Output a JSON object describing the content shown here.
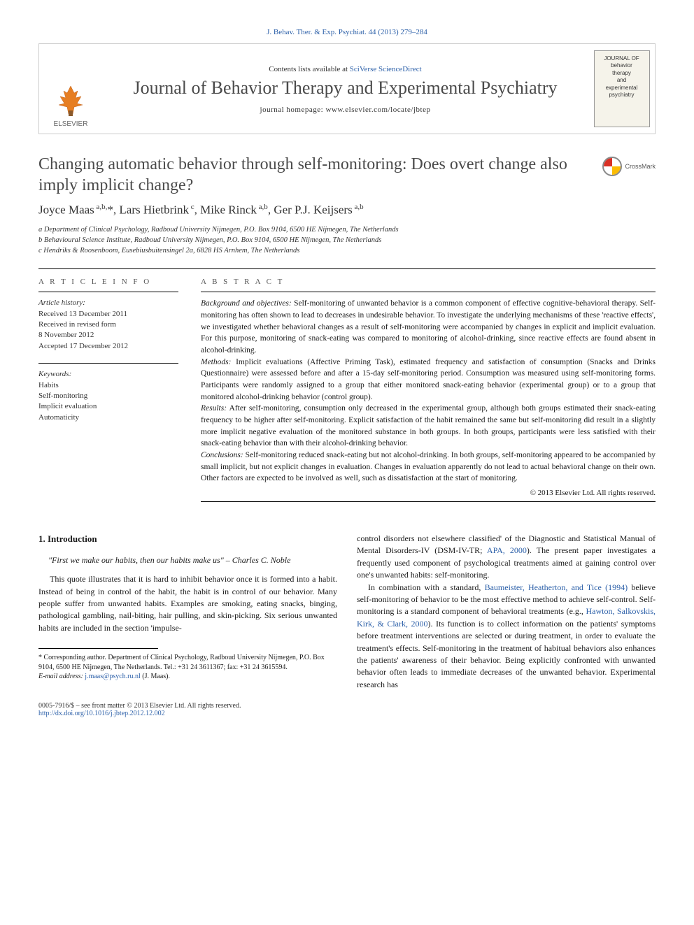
{
  "citation": "J. Behav. Ther. & Exp. Psychiat. 44 (2013) 279–284",
  "banner": {
    "publisher": "ELSEVIER",
    "contents_prefix": "Contents lists available at ",
    "contents_link": "SciVerse ScienceDirect",
    "journal_name": "Journal of Behavior Therapy and Experimental Psychiatry",
    "homepage_prefix": "journal homepage: ",
    "homepage_url": "www.elsevier.com/locate/jbtep",
    "cover_words": [
      "JOURNAL OF",
      "behavior",
      "therapy",
      "and",
      "experimental",
      "psychiatry"
    ]
  },
  "crossmark_label": "CrossMark",
  "title": "Changing automatic behavior through self-monitoring: Does overt change also imply implicit change?",
  "authors_html": "Joyce Maas<sup> a,b,</sup>*, Lars Hietbrink<sup> c</sup>, Mike Rinck<sup> a,b</sup>, Ger P.J. Keijsers<sup> a,b</sup>",
  "affiliations": [
    "a Department of Clinical Psychology, Radboud University Nijmegen, P.O. Box 9104, 6500 HE Nijmegen, The Netherlands",
    "b Behavioural Science Institute, Radboud University Nijmegen, P.O. Box 9104, 6500 HE Nijmegen, The Netherlands",
    "c Hendriks & Roosenboom, Eusebiusbuitensingel 2a, 6828 HS Arnhem, The Netherlands"
  ],
  "info_heading": "A R T I C L E   I N F O",
  "abstract_heading": "A B S T R A C T",
  "history": {
    "label": "Article history:",
    "lines": [
      "Received 13 December 2011",
      "Received in revised form",
      "8 November 2012",
      "Accepted 17 December 2012"
    ]
  },
  "keywords": {
    "label": "Keywords:",
    "lines": [
      "Habits",
      "Self-monitoring",
      "Implicit evaluation",
      "Automaticity"
    ]
  },
  "abstract": {
    "background_label": "Background and objectives:",
    "background": " Self-monitoring of unwanted behavior is a common component of effective cognitive-behavioral therapy. Self-monitoring has often shown to lead to decreases in undesirable behavior. To investigate the underlying mechanisms of these 'reactive effects', we investigated whether behavioral changes as a result of self-monitoring were accompanied by changes in explicit and implicit evaluation. For this purpose, monitoring of snack-eating was compared to monitoring of alcohol-drinking, since reactive effects are found absent in alcohol-drinking.",
    "methods_label": "Methods:",
    "methods": " Implicit evaluations (Affective Priming Task), estimated frequency and satisfaction of consumption (Snacks and Drinks Questionnaire) were assessed before and after a 15-day self-monitoring period. Consumption was measured using self-monitoring forms. Participants were randomly assigned to a group that either monitored snack-eating behavior (experimental group) or to a group that monitored alcohol-drinking behavior (control group).",
    "results_label": "Results:",
    "results": " After self-monitoring, consumption only decreased in the experimental group, although both groups estimated their snack-eating frequency to be higher after self-monitoring. Explicit satisfaction of the habit remained the same but self-monitoring did result in a slightly more implicit negative evaluation of the monitored substance in both groups. In both groups, participants were less satisfied with their snack-eating behavior than with their alcohol-drinking behavior.",
    "conclusions_label": "Conclusions:",
    "conclusions": " Self-monitoring reduced snack-eating but not alcohol-drinking. In both groups, self-monitoring appeared to be accompanied by small implicit, but not explicit changes in evaluation. Changes in evaluation apparently do not lead to actual behavioral change on their own. Other factors are expected to be involved as well, such as dissatisfaction at the start of monitoring.",
    "copyright": "© 2013 Elsevier Ltd. All rights reserved."
  },
  "body": {
    "section_number": "1.",
    "section_title": "Introduction",
    "quote": "\"First we make our habits, then our habits make us\" – Charles C. Noble",
    "col1_p1": "This quote illustrates that it is hard to inhibit behavior once it is formed into a habit. Instead of being in control of the habit, the habit is in control of our behavior. Many people suffer from unwanted habits. Examples are smoking, eating snacks, binging, pathological gambling, nail-biting, hair pulling, and skin-picking. Six serious unwanted habits are included in the section 'impulse-",
    "col2_p1_a": "control disorders not elsewhere classified' of the Diagnostic and Statistical Manual of Mental Disorders-IV (DSM-IV-TR; ",
    "col2_p1_link1": "APA, 2000",
    "col2_p1_b": "). The present paper investigates a frequently used component of psychological treatments aimed at gaining control over one's unwanted habits: self-monitoring.",
    "col2_p2_a": "In combination with a standard, ",
    "col2_p2_link1": "Baumeister, Heatherton, and Tice (1994)",
    "col2_p2_b": " believe self-monitoring of behavior to be the most effective method to achieve self-control. Self-monitoring is a standard component of behavioral treatments (e.g., ",
    "col2_p2_link2": "Hawton, Salkovskis, Kirk, & Clark, 2000",
    "col2_p2_c": "). Its function is to collect information on the patients' symptoms before treatment interventions are selected or during treatment, in order to evaluate the treatment's effects. Self-monitoring in the treatment of habitual behaviors also enhances the patients' awareness of their behavior. Being explicitly confronted with unwanted behavior often leads to immediate decreases of the unwanted behavior. Experimental research has"
  },
  "footnote": {
    "corr": "* Corresponding author. Department of Clinical Psychology, Radboud University Nijmegen, P.O. Box 9104, 6500 HE Nijmegen, The Netherlands. Tel.: +31 24 3611367; fax: +31 24 3615594.",
    "email_label": "E-mail address:",
    "email": "j.maas@psych.ru.nl",
    "email_suffix": " (J. Maas)."
  },
  "footer": {
    "issn_line": "0005-7916/$ – see front matter © 2013 Elsevier Ltd. All rights reserved.",
    "doi": "http://dx.doi.org/10.1016/j.jbtep.2012.12.002"
  },
  "colors": {
    "link": "#2b5fa8",
    "heading_gray": "#4a4a4a",
    "text": "#1a1a1a"
  }
}
